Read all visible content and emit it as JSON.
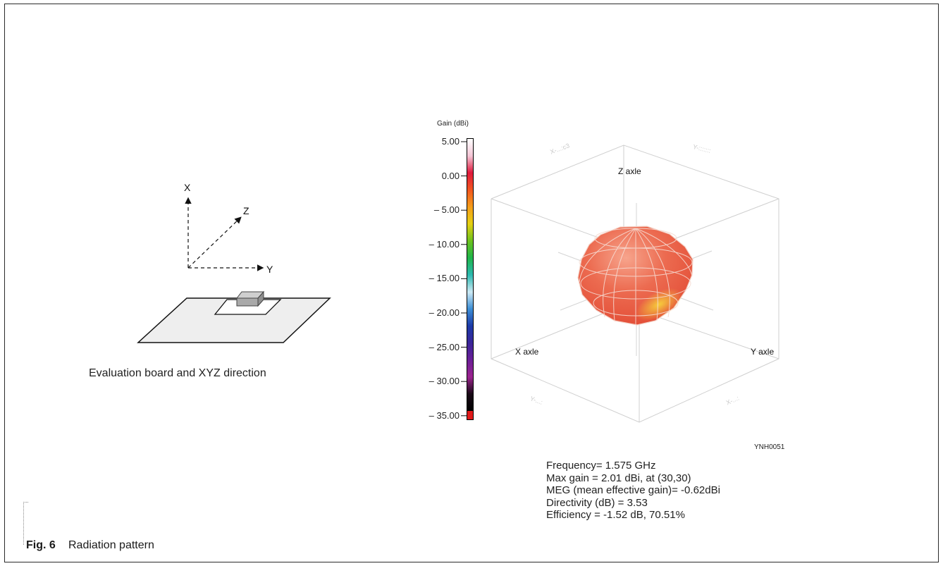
{
  "board": {
    "axis_x": "X",
    "axis_y": "Y",
    "axis_z": "Z",
    "caption": "Evaluation board and XYZ direction"
  },
  "colorbar": {
    "title": "Gain (dBi)",
    "ticks": [
      "5.00",
      "0.00",
      "– 5.00",
      "– 10.00",
      "– 15.00",
      "– 20.00",
      "– 25.00",
      "– 30.00",
      "– 35.00"
    ],
    "gradient_colors": [
      "#ffffff",
      "#f4c6d6",
      "#e0193c",
      "#f2561f",
      "#f59e1a",
      "#e6d012",
      "#6cc21e",
      "#1fb54a",
      "#2bb9b0",
      "#cdeaf5",
      "#3d8fd6",
      "#1c3aa8",
      "#3a2599",
      "#6b1f98",
      "#9c238f",
      "#1a0a18",
      "#000000"
    ],
    "bottom_marker": "#e01a1a"
  },
  "pattern3d": {
    "z_label": "Z axle",
    "x_label": "X axle",
    "y_label": "Y axle",
    "faint_top_left": "X-...:c3",
    "faint_top_right": "Y-:::::::",
    "faint_bottom_left": "Y-...:",
    "faint_bottom_right": "X-...:",
    "surface_color": "#ec6b50",
    "highlight_color": "#f7d23a"
  },
  "doc_code": "YNH0051",
  "info": {
    "frequency": "Frequency= 1.575 GHz",
    "max_gain": "Max gain = 2.01 dBi, at (30,30)",
    "meg": "MEG (mean effective gain)= -0.62dBi",
    "directivity": "Directivity (dB) = 3.53",
    "efficiency": "Efficiency = -1.52 dB, 70.51%"
  },
  "figure": {
    "number": "Fig. 6",
    "title": "Radiation pattern"
  }
}
